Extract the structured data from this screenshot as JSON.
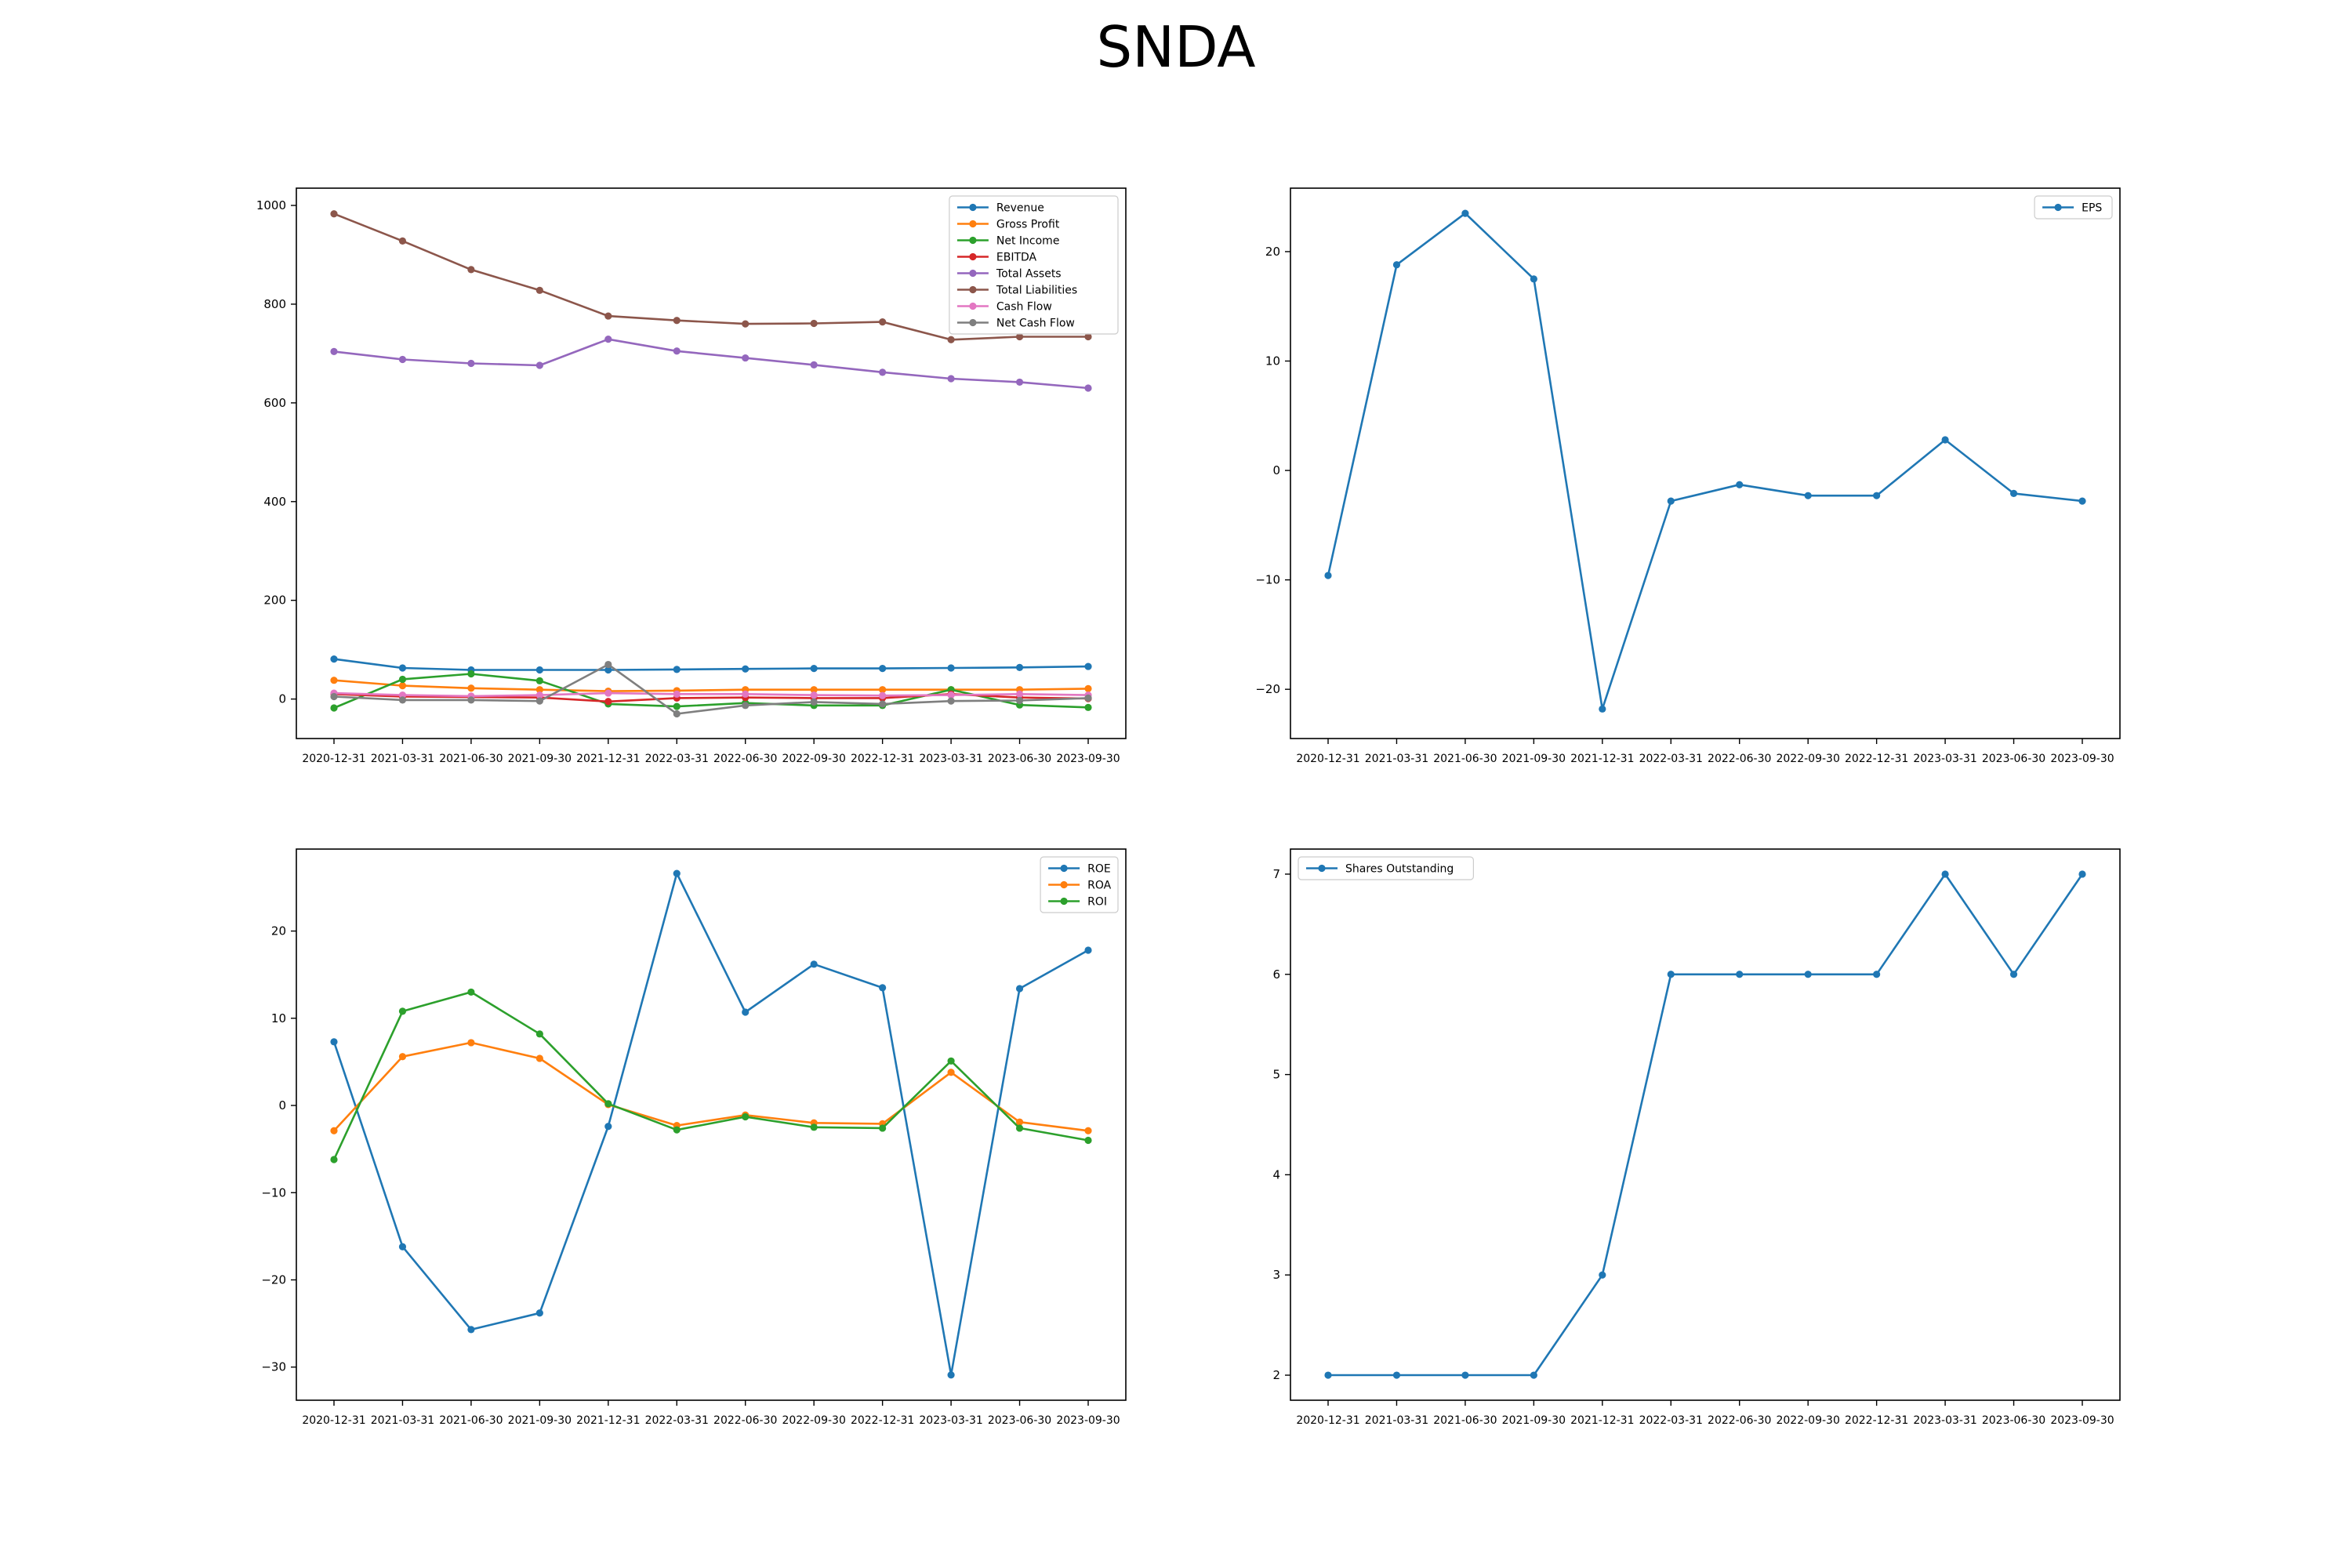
{
  "figure_title": "SNDA",
  "colors": {
    "blue": "#1f77b4",
    "orange": "#ff7f0e",
    "green": "#2ca02c",
    "red": "#d62728",
    "purple": "#9467bd",
    "brown": "#8c564b",
    "pink": "#e377c2",
    "gray": "#7f7f7f"
  },
  "chart_data": [
    {
      "type": "line",
      "title": "",
      "xlabel": "",
      "ylabel": "",
      "x": [
        "2020-12-31",
        "2021-03-31",
        "2021-06-30",
        "2021-09-30",
        "2021-12-31",
        "2022-03-31",
        "2022-06-30",
        "2022-09-30",
        "2022-12-31",
        "2023-03-31",
        "2023-06-30",
        "2023-09-30"
      ],
      "ylim": [
        -80,
        1035
      ],
      "yticks": [
        0,
        200,
        400,
        600,
        800,
        1000
      ],
      "legend": "top-right",
      "grid": false,
      "series": [
        {
          "name": "Revenue",
          "color": "#1f77b4",
          "values": [
            81,
            63,
            59,
            59,
            59,
            60,
            61,
            62,
            62,
            63,
            64,
            66
          ]
        },
        {
          "name": "Gross Profit",
          "color": "#ff7f0e",
          "values": [
            38,
            27,
            22,
            19,
            16,
            17,
            19,
            19,
            19,
            19,
            19,
            21
          ]
        },
        {
          "name": "Net Income",
          "color": "#2ca02c",
          "values": [
            -18,
            40,
            51,
            37,
            -10,
            -15,
            -8,
            -13,
            -13,
            19,
            -12,
            -17
          ]
        },
        {
          "name": "EBITDA",
          "color": "#d62728",
          "values": [
            10,
            5,
            4,
            3,
            -5,
            2,
            3,
            2,
            2,
            10,
            3,
            1
          ]
        },
        {
          "name": "Total Assets",
          "color": "#9467bd",
          "values": [
            704,
            688,
            680,
            676,
            729,
            705,
            691,
            677,
            662,
            649,
            642,
            630
          ]
        },
        {
          "name": "Total Liabilities",
          "color": "#8c564b",
          "values": [
            983,
            928,
            870,
            828,
            776,
            767,
            760,
            761,
            764,
            728,
            734,
            734
          ]
        },
        {
          "name": "Cash Flow",
          "color": "#e377c2",
          "values": [
            12,
            8,
            6,
            8,
            12,
            10,
            10,
            8,
            7,
            8,
            10,
            8
          ]
        },
        {
          "name": "Net Cash Flow",
          "color": "#7f7f7f",
          "values": [
            5,
            -2,
            -2,
            -4,
            70,
            -30,
            -13,
            -6,
            -10,
            -4,
            -3,
            2
          ]
        }
      ]
    },
    {
      "type": "line",
      "title": "",
      "xlabel": "",
      "ylabel": "",
      "x": [
        "2020-12-31",
        "2021-03-31",
        "2021-06-30",
        "2021-09-30",
        "2021-12-31",
        "2022-03-31",
        "2022-06-30",
        "2022-09-30",
        "2022-12-31",
        "2023-03-31",
        "2023-06-30",
        "2023-09-30"
      ],
      "ylim": [
        -24.5,
        25.8
      ],
      "yticks": [
        -20,
        -10,
        0,
        10,
        20
      ],
      "legend": "top-right",
      "grid": false,
      "series": [
        {
          "name": "EPS",
          "color": "#1f77b4",
          "values": [
            -9.6,
            18.8,
            23.5,
            17.5,
            -21.8,
            -2.8,
            -1.3,
            -2.3,
            -2.3,
            2.8,
            -2.1,
            -2.8
          ]
        }
      ]
    },
    {
      "type": "line",
      "title": "",
      "xlabel": "",
      "ylabel": "",
      "x": [
        "2020-12-31",
        "2021-03-31",
        "2021-06-30",
        "2021-09-30",
        "2021-12-31",
        "2022-03-31",
        "2022-06-30",
        "2022-09-30",
        "2022-12-31",
        "2023-03-31",
        "2023-06-30",
        "2023-09-30"
      ],
      "ylim": [
        -33.8,
        29.4
      ],
      "yticks": [
        -30,
        -20,
        -10,
        0,
        10,
        20
      ],
      "legend": "top-right",
      "grid": false,
      "series": [
        {
          "name": "ROE",
          "color": "#1f77b4",
          "values": [
            7.3,
            -16.2,
            -25.7,
            -23.8,
            -2.4,
            26.6,
            10.7,
            16.2,
            13.5,
            -30.9,
            13.4,
            17.8
          ]
        },
        {
          "name": "ROA",
          "color": "#ff7f0e",
          "values": [
            -2.9,
            5.6,
            7.2,
            5.4,
            0.1,
            -2.3,
            -1.1,
            -2.0,
            -2.1,
            3.8,
            -1.9,
            -2.9
          ]
        },
        {
          "name": "ROI",
          "color": "#2ca02c",
          "values": [
            -6.2,
            10.8,
            13.0,
            8.2,
            0.2,
            -2.8,
            -1.3,
            -2.5,
            -2.6,
            5.1,
            -2.6,
            -4.0
          ]
        }
      ]
    },
    {
      "type": "line",
      "title": "",
      "xlabel": "",
      "ylabel": "",
      "x": [
        "2020-12-31",
        "2021-03-31",
        "2021-06-30",
        "2021-09-30",
        "2021-12-31",
        "2022-03-31",
        "2022-06-30",
        "2022-09-30",
        "2022-12-31",
        "2023-03-31",
        "2023-06-30",
        "2023-09-30"
      ],
      "ylim": [
        1.75,
        7.25
      ],
      "yticks": [
        2,
        3,
        4,
        5,
        6,
        7
      ],
      "legend": "top-left",
      "grid": false,
      "series": [
        {
          "name": "Shares Outstanding",
          "color": "#1f77b4",
          "values": [
            2,
            2,
            2,
            2,
            3,
            6,
            6,
            6,
            6,
            7,
            6,
            7
          ]
        }
      ]
    }
  ]
}
